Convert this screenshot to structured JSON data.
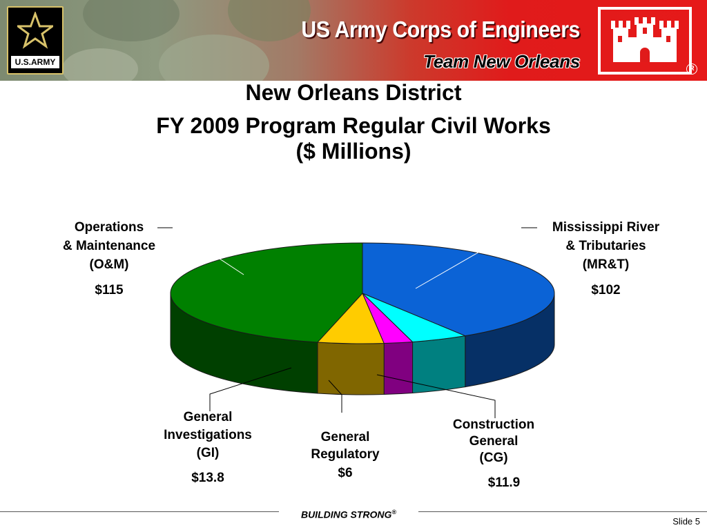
{
  "header": {
    "org_name": "US Army Corps of Engineers",
    "team_name": "Team New Orleans",
    "army_wordmark": "U.S.ARMY",
    "reg_mark": "R",
    "colors": {
      "banner_red": "#e01b1b",
      "camo": "#8e9a80",
      "army_gold": "#d8c26a"
    }
  },
  "chart_data": {
    "type": "pie",
    "title": "New Orleans District",
    "subtitle": "FY 2009 Program Regular Civil Works",
    "unit": "($ Millions)",
    "slices": [
      {
        "label": [
          "Mississippi River",
          "& Tributaries",
          "(MR&T)"
        ],
        "value": 102,
        "value_label": "$102",
        "color": "#0b63d6",
        "side_color": "#063066"
      },
      {
        "label": [
          "Construction",
          "General",
          "(CG)"
        ],
        "value": 11.9,
        "value_label": "$11.9",
        "color": "#00ffff",
        "side_color": "#008080"
      },
      {
        "label": [
          "General",
          "Regulatory"
        ],
        "value": 6,
        "value_label": "$6",
        "color": "#ff00ff",
        "side_color": "#800080"
      },
      {
        "label": [
          "General",
          "Investigations",
          "(GI)"
        ],
        "value": 13.8,
        "value_label": "$13.8",
        "color": "#ffcc00",
        "side_color": "#806600"
      },
      {
        "label": [
          "Operations",
          "& Maintenance",
          "(O&M)"
        ],
        "value": 115,
        "value_label": "$115",
        "color": "#008000",
        "side_color": "#004000"
      }
    ],
    "style": "3d-elliptical"
  },
  "footer": {
    "tagline": "BUILDING STRONG",
    "tagline_mark": "®",
    "slide_number": "Slide 5"
  }
}
